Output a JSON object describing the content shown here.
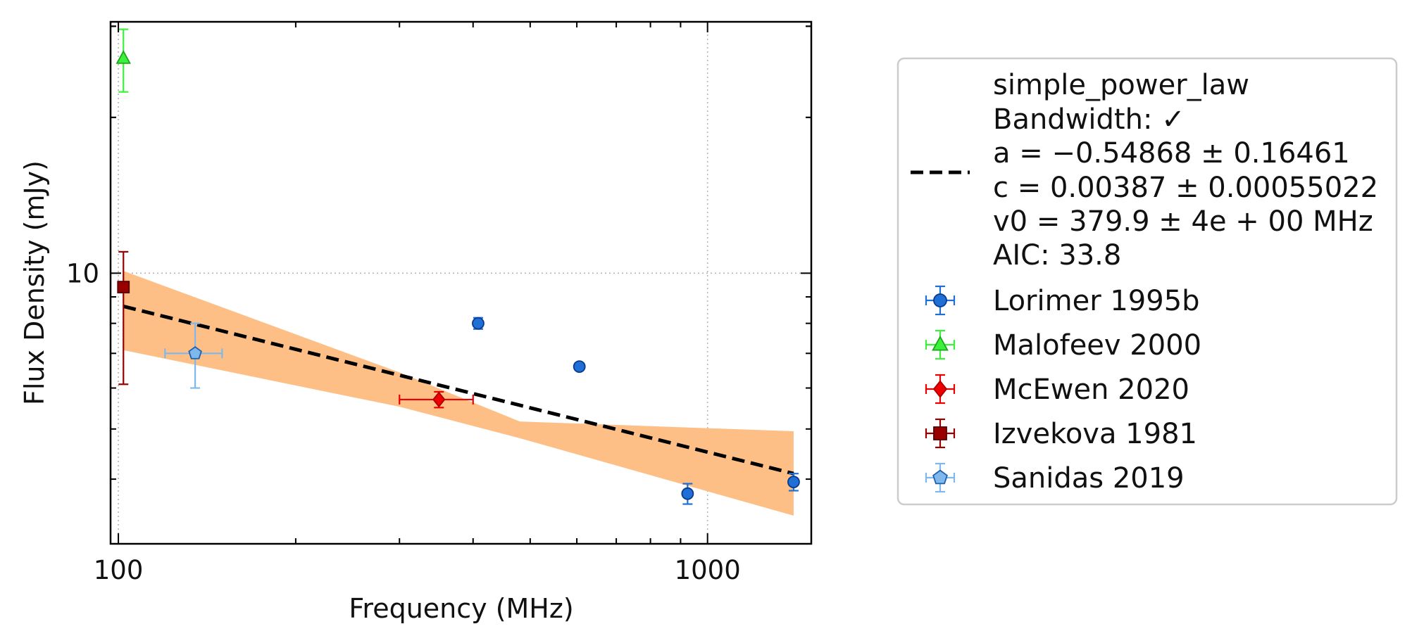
{
  "chart_data": {
    "type": "scatter",
    "xlabel": "Frequency (MHz)",
    "ylabel": "Flux Density (mJy)",
    "xscale": "log",
    "yscale": "log",
    "xlim": [
      97,
      1500
    ],
    "ylim": [
      3.0,
      30.6
    ],
    "x_ticks": [
      {
        "value": 100,
        "label": "100"
      },
      {
        "value": 1000,
        "label": "1000"
      }
    ],
    "y_ticks": [
      {
        "value": 10,
        "label": "10"
      }
    ],
    "grid": "major, dotted",
    "legend_position": "outside right",
    "fit": {
      "name": "simple_power_law",
      "bandwidth": "Bandwidth: ✓",
      "a": "a = −0.54868 ± 0.16461",
      "c": "c = 0.00387 ± 0.00055022",
      "v0": "v0 = 379.9 ± 4e + 00 MHz",
      "aic": "AIC: 33.8",
      "line_color": "#000000",
      "band_color": "#fdbf85",
      "line": [
        [
          102,
          8.63
        ],
        [
          1400,
          4.1
        ]
      ],
      "band": [
        [
          102,
          7.1,
          10.1
        ],
        [
          300,
          5.52,
          6.43
        ],
        [
          480,
          4.8,
          5.17
        ],
        [
          1400,
          3.4,
          4.95
        ]
      ]
    },
    "series": [
      {
        "name": "Lorimer 1995b",
        "marker": "circle",
        "color": "#1f6fd6",
        "edge": "#0a3a8a",
        "points": [
          {
            "x": 408,
            "y": 8.0,
            "yerr": 0.2
          },
          {
            "x": 606,
            "y": 6.6,
            "yerr": 0.1
          },
          {
            "x": 925,
            "y": 3.75,
            "yerr": 0.17
          },
          {
            "x": 1400,
            "y": 3.95,
            "yerr": 0.15
          }
        ]
      },
      {
        "name": "Malofeev 2000",
        "marker": "triangle",
        "color": "#3cf03c",
        "edge": "#1aa81a",
        "points": [
          {
            "x": 102,
            "y": 26.0,
            "yerr": 3.6
          }
        ]
      },
      {
        "name": "McEwen 2020",
        "marker": "diamond",
        "color": "#ee0000",
        "edge": "#aa0000",
        "points": [
          {
            "x": 350,
            "y": 5.7,
            "yerr": 0.2,
            "xerr": [
              50,
              50
            ]
          }
        ]
      },
      {
        "name": "Izvekova 1981",
        "marker": "square",
        "color": "#990000",
        "edge": "#550000",
        "points": [
          {
            "x": 102,
            "y": 9.4,
            "yerr": [
              3.3,
              1.6
            ]
          }
        ]
      },
      {
        "name": "Sanidas 2019",
        "marker": "pentagon",
        "color": "#7fb8ec",
        "edge": "#2060a8",
        "points": [
          {
            "x": 135,
            "y": 7.0,
            "yerr": 1.0,
            "xerr": [
              15,
              15
            ]
          }
        ]
      }
    ]
  }
}
